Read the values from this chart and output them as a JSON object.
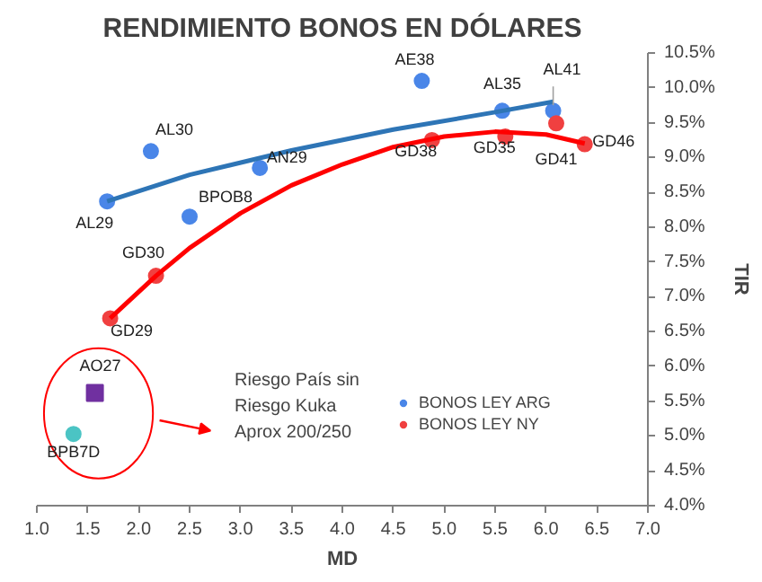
{
  "chart_data": {
    "type": "scatter",
    "title": "RENDIMIENTO BONOS EN DÓLARES",
    "xlabel": "MD",
    "ylabel": "TIR",
    "xlim": [
      1.0,
      7.0
    ],
    "xticks": [
      {
        "value": 1,
        "label": "1.0"
      },
      1.5,
      {
        "value": 2,
        "label": "2.0"
      },
      2.5,
      {
        "value": 3,
        "label": "3.0"
      },
      3.5,
      {
        "value": 4,
        "label": "4.0"
      },
      4.5,
      {
        "value": 5,
        "label": "5.0"
      },
      5.5,
      {
        "value": 6,
        "label": "6.0"
      },
      6.5,
      {
        "value": 7,
        "label": "7.0"
      }
    ],
    "ylim": [
      4.0,
      10.5
    ],
    "yticks": [
      {
        "value": 4.0,
        "label": "4.0%"
      },
      {
        "value": 4.5,
        "label": "4.5%"
      },
      {
        "value": 5.0,
        "label": "5.0%"
      },
      {
        "value": 5.5,
        "label": "5.5%"
      },
      {
        "value": 6.0,
        "label": "6.0%"
      },
      {
        "value": 6.5,
        "label": "6.5%"
      },
      {
        "value": 7.0,
        "label": "7.0%"
      },
      {
        "value": 7.5,
        "label": "7.5%"
      },
      {
        "value": 8.0,
        "label": "8.0%"
      },
      {
        "value": 8.5,
        "label": "8.5%"
      },
      {
        "value": 9.0,
        "label": "9.0%"
      },
      {
        "value": 9.5,
        "label": "9.5%"
      },
      {
        "value": 10.0,
        "label": "10.0%"
      },
      {
        "value": 10.5,
        "label": "10.5%"
      }
    ],
    "grid": false,
    "legend": "bottom",
    "marker": "circle",
    "series": [
      {
        "name": "BONOS LEY ARG",
        "color": "#4a86e8",
        "x": [
          1.69,
          2.12,
          2.5,
          3.19,
          4.78,
          5.57,
          6.07
        ],
        "values": [
          8.37,
          9.09,
          8.15,
          8.85,
          10.1,
          9.67,
          9.67
        ]
      },
      {
        "name": "BONOS LEY NY",
        "color": "#f04040",
        "x": [
          1.72,
          2.17,
          4.88,
          5.6,
          6.1,
          6.38
        ],
        "values": [
          6.69,
          7.3,
          9.25,
          9.3,
          9.49,
          9.19
        ]
      },
      {
        "color": "#7030a0",
        "marker": "square",
        "x": [
          1.57
        ],
        "values": [
          5.62
        ]
      },
      {
        "color": "#4bc4c4",
        "x": [
          1.36
        ],
        "values": [
          5.03
        ]
      },
      {
        "type": "line",
        "color": "#2e75b6",
        "marker": "none",
        "x": [
          1.69,
          2.5,
          3.5,
          4.5,
          5.5,
          6.07
        ],
        "values": [
          8.37,
          8.75,
          9.1,
          9.4,
          9.65,
          9.8
        ]
      },
      {
        "type": "line",
        "color": "#ff0000",
        "marker": "none",
        "x": [
          1.72,
          2.17,
          2.5,
          3.0,
          3.5,
          4.0,
          4.5,
          5.0,
          5.5,
          6.0,
          6.38
        ],
        "values": [
          6.69,
          7.3,
          7.7,
          8.2,
          8.6,
          8.9,
          9.15,
          9.3,
          9.37,
          9.33,
          9.2
        ]
      }
    ],
    "annotations": [
      {
        "text": "AL29",
        "x": 1.69,
        "y": 8.37
      },
      {
        "text": "AL30",
        "x": 2.12,
        "y": 9.09
      },
      {
        "text": "BPOB8",
        "x": 2.5,
        "y": 8.15
      },
      {
        "text": "AN29",
        "x": 3.19,
        "y": 8.85
      },
      {
        "text": "AE38",
        "x": 4.78,
        "y": 10.1
      },
      {
        "text": "AL35",
        "x": 5.57,
        "y": 9.67
      },
      {
        "text": "AL41",
        "x": 6.07,
        "y": 9.67
      },
      {
        "text": "GD29",
        "x": 1.72,
        "y": 6.69
      },
      {
        "text": "GD30",
        "x": 2.17,
        "y": 7.3
      },
      {
        "text": "GD38",
        "x": 4.88,
        "y": 9.25
      },
      {
        "text": "GD35",
        "x": 5.6,
        "y": 9.3
      },
      {
        "text": "GD41",
        "x": 6.1,
        "y": 9.49
      },
      {
        "text": "GD46",
        "x": 6.38,
        "y": 9.19
      },
      {
        "text": "AO27",
        "x": 1.57,
        "y": 5.62
      },
      {
        "text": "BPB7D",
        "x": 1.36,
        "y": 5.03
      },
      "Riesgo País sin\nRiesgo Kuka\nAprox 200/250"
    ]
  }
}
